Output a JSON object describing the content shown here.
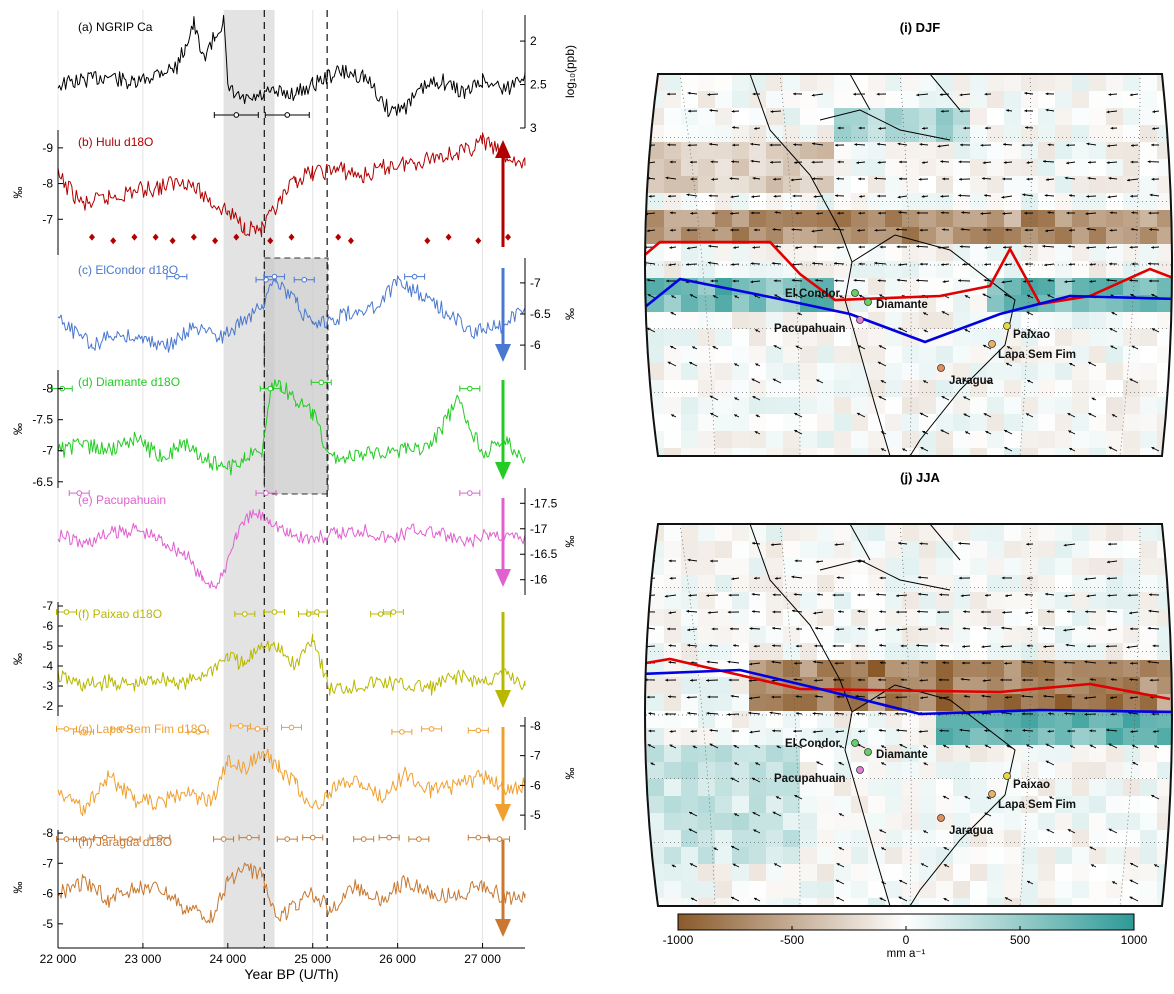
{
  "chart_data": [
    {
      "type": "line",
      "xlabel": "Year BP (U/Th)",
      "xlim": [
        22000,
        27500
      ],
      "x_ticks": [
        "22 000",
        "23 000",
        "24 000",
        "25 000",
        "26 000",
        "27 000"
      ],
      "x_tick_values": [
        22000,
        23000,
        24000,
        25000,
        26000,
        27000
      ],
      "shaded_light_x": [
        23950,
        24550
      ],
      "dashed_lines_x": [
        24430,
        25170
      ],
      "dark_box_x": [
        24430,
        25180
      ],
      "panels": [
        {
          "id": "a",
          "name": "(a) NGRIP Ca",
          "color": "#000000",
          "ylabel": "log₁₀(ppb)",
          "yaxis_side": "right",
          "reversed": true,
          "ylim": [
            1.7,
            3.0
          ],
          "y_ticks": [
            "2",
            "2.5",
            "3"
          ],
          "y_tick_values": [
            2,
            2.5,
            3
          ],
          "x": [
            22000,
            22300,
            22600,
            22900,
            23200,
            23400,
            23500,
            23600,
            23700,
            23850,
            23950,
            24000,
            24200,
            24500,
            24800,
            25000,
            25300,
            25600,
            25900,
            26100,
            26300,
            26500,
            26800,
            27000,
            27300,
            27500
          ],
          "values": [
            2.5,
            2.45,
            2.4,
            2.5,
            2.35,
            2.3,
            2.05,
            1.8,
            2.2,
            1.95,
            1.75,
            2.55,
            2.7,
            2.6,
            2.6,
            2.5,
            2.35,
            2.4,
            2.8,
            2.75,
            2.55,
            2.45,
            2.6,
            2.45,
            2.55,
            2.35
          ],
          "age_markers": [
            {
              "x": 24100,
              "y": 2.85
            },
            {
              "x": 24700,
              "y": 2.85
            }
          ]
        },
        {
          "id": "b",
          "name": "(b) Hulu d18O",
          "color": "#b00000",
          "ylabel": "‰",
          "yaxis_side": "left",
          "reversed": true,
          "ylim": [
            -9.5,
            -6.0
          ],
          "y_ticks": [
            "-9",
            "-8",
            "-7"
          ],
          "y_tick_values": [
            -9,
            -8,
            -7
          ],
          "x": [
            22000,
            22300,
            22600,
            22900,
            23200,
            23500,
            23800,
            24000,
            24200,
            24400,
            24600,
            24800,
            25000,
            25300,
            25600,
            25900,
            26200,
            26500,
            26800,
            27000,
            27300,
            27500
          ],
          "values": [
            -8.2,
            -7.4,
            -7.6,
            -7.8,
            -7.9,
            -8.1,
            -7.5,
            -7.2,
            -6.8,
            -6.7,
            -7.4,
            -8.1,
            -8.3,
            -8.4,
            -8.2,
            -8.5,
            -8.6,
            -8.8,
            -8.9,
            -9.2,
            -8.7,
            -8.5
          ],
          "age_markers": [
            {
              "x": 22400,
              "y": -6.5
            },
            {
              "x": 22650,
              "y": -6.4
            },
            {
              "x": 22900,
              "y": -6.5
            },
            {
              "x": 23150,
              "y": -6.5
            },
            {
              "x": 23350,
              "y": -6.4
            },
            {
              "x": 23600,
              "y": -6.5
            },
            {
              "x": 23850,
              "y": -6.4
            },
            {
              "x": 24100,
              "y": -6.5
            },
            {
              "x": 24500,
              "y": -6.4
            },
            {
              "x": 24750,
              "y": -6.5
            },
            {
              "x": 25300,
              "y": -6.5
            },
            {
              "x": 25450,
              "y": -6.4
            },
            {
              "x": 26350,
              "y": -6.4
            },
            {
              "x": 26600,
              "y": -6.5
            },
            {
              "x": 26950,
              "y": -6.4
            },
            {
              "x": 27300,
              "y": -6.5
            }
          ],
          "arrow": "up"
        },
        {
          "id": "c",
          "name": "(c) ElCondor d18O",
          "color": "#4a78d0",
          "ylabel": "‰",
          "yaxis_side": "right",
          "reversed": true,
          "ylim": [
            -7.4,
            -5.6
          ],
          "y_ticks": [
            "-6",
            "-6.5",
            "-7"
          ],
          "y_tick_values": [
            -6,
            -6.5,
            -7
          ],
          "x": [
            22000,
            22400,
            22700,
            23000,
            23300,
            23600,
            23900,
            24200,
            24400,
            24500,
            24600,
            24800,
            25000,
            25200,
            25400,
            25700,
            26000,
            26300,
            26600,
            26900,
            27200,
            27500
          ],
          "values": [
            -6.4,
            -6.0,
            -6.2,
            -6.1,
            -6.0,
            -6.3,
            -6.1,
            -6.4,
            -6.6,
            -7.1,
            -7.0,
            -6.7,
            -6.3,
            -6.4,
            -6.5,
            -6.6,
            -7.0,
            -6.8,
            -6.5,
            -6.2,
            -6.3,
            -6.6
          ],
          "age_markers": [
            {
              "x": 23400,
              "y": -7.1
            },
            {
              "x": 24450,
              "y": -7.05
            },
            {
              "x": 24550,
              "y": -7.1
            },
            {
              "x": 24900,
              "y": -7.05
            },
            {
              "x": 26200,
              "y": -7.1
            }
          ],
          "arrow": "down"
        },
        {
          "id": "d",
          "name": "(d) Diamante d18O",
          "color": "#22cc22",
          "ylabel": "‰",
          "yaxis_side": "left",
          "reversed": true,
          "ylim": [
            -8.3,
            -6.4
          ],
          "y_ticks": [
            "-6.5",
            "-7",
            "-7.5",
            "-8"
          ],
          "y_tick_values": [
            -6.5,
            -7,
            -7.5,
            -8
          ],
          "x": [
            22000,
            22300,
            22600,
            22900,
            23200,
            23500,
            23800,
            24000,
            24200,
            24400,
            24500,
            24600,
            24800,
            25000,
            25200,
            25500,
            25800,
            26100,
            26400,
            26700,
            27000,
            27300,
            27500
          ],
          "values": [
            -7.0,
            -7.1,
            -7.0,
            -7.2,
            -6.9,
            -7.1,
            -6.8,
            -6.7,
            -6.9,
            -7.0,
            -8.0,
            -8.1,
            -7.8,
            -7.6,
            -6.9,
            -6.9,
            -7.0,
            -7.0,
            -7.1,
            -7.8,
            -7.0,
            -7.1,
            -6.9
          ],
          "age_markers": [
            {
              "x": 22050,
              "y": -8.0
            },
            {
              "x": 24500,
              "y": -8.0
            },
            {
              "x": 25100,
              "y": -8.1
            },
            {
              "x": 26850,
              "y": -8.0
            }
          ],
          "arrow": "down"
        },
        {
          "id": "e",
          "name": "(e) Pacupahuain",
          "color": "#e060d0",
          "ylabel": "‰",
          "yaxis_side": "right",
          "reversed": true,
          "ylim": [
            -17.8,
            -15.7
          ],
          "y_ticks": [
            "-16",
            "-16.5",
            "-17",
            "-17.5"
          ],
          "y_tick_values": [
            -16,
            -16.5,
            -17,
            -17.5
          ],
          "x": [
            22000,
            22300,
            22600,
            22900,
            23200,
            23500,
            23700,
            23900,
            24100,
            24300,
            24500,
            24700,
            25000,
            25300,
            25600,
            25900,
            26200,
            26500,
            26800,
            27100,
            27500
          ],
          "values": [
            -16.9,
            -16.7,
            -16.9,
            -17.0,
            -16.8,
            -16.5,
            -16.0,
            -15.9,
            -16.9,
            -17.3,
            -17.2,
            -16.9,
            -16.8,
            -16.9,
            -17.0,
            -16.8,
            -17.0,
            -16.9,
            -16.7,
            -16.9,
            -16.8
          ],
          "age_markers": [
            {
              "x": 22250,
              "y": -17.7
            },
            {
              "x": 24450,
              "y": -17.7
            },
            {
              "x": 26850,
              "y": -17.7
            }
          ],
          "arrow": "down"
        },
        {
          "id": "f",
          "name": "(f) Paixao d18O",
          "color": "#b8b800",
          "ylabel": "‰",
          "yaxis_side": "left",
          "reversed": true,
          "ylim": [
            -7.2,
            -1.5
          ],
          "y_ticks": [
            "-2",
            "-3",
            "-4",
            "-5",
            "-6",
            "-7"
          ],
          "y_tick_values": [
            -2,
            -3,
            -4,
            -5,
            -6,
            -7
          ],
          "x": [
            22000,
            22300,
            22600,
            22900,
            23200,
            23500,
            23800,
            24000,
            24200,
            24400,
            24600,
            24800,
            25000,
            25200,
            25500,
            25800,
            26100,
            26400,
            26700,
            27000,
            27300,
            27500
          ],
          "values": [
            -3.5,
            -3.0,
            -3.2,
            -3.0,
            -3.4,
            -3.1,
            -3.8,
            -4.5,
            -4.0,
            -5.2,
            -4.8,
            -4.0,
            -5.5,
            -2.8,
            -3.0,
            -3.2,
            -3.0,
            -2.9,
            -3.5,
            -3.2,
            -3.6,
            -3.0
          ],
          "age_markers": [
            {
              "x": 22100,
              "y": -6.7
            },
            {
              "x": 24200,
              "y": -6.6
            },
            {
              "x": 24550,
              "y": -6.7
            },
            {
              "x": 24950,
              "y": -6.6
            },
            {
              "x": 25050,
              "y": -6.7
            },
            {
              "x": 25800,
              "y": -6.6
            },
            {
              "x": 25950,
              "y": -6.7
            }
          ],
          "arrow": "down"
        },
        {
          "id": "g",
          "name": "(g) Lapa Sem Fim d18O",
          "color": "#f0a030",
          "ylabel": "‰",
          "yaxis_side": "right",
          "reversed": true,
          "ylim": [
            -8.3,
            -4.5
          ],
          "y_ticks": [
            "-5",
            "-6",
            "-7",
            "-8"
          ],
          "y_tick_values": [
            -5,
            -6,
            -7,
            -8
          ],
          "x": [
            22000,
            22300,
            22600,
            22900,
            23200,
            23500,
            23800,
            24000,
            24200,
            24400,
            24600,
            24800,
            25000,
            25200,
            25500,
            25800,
            26100,
            26400,
            26700,
            27000,
            27300,
            27500
          ],
          "values": [
            -5.8,
            -5.2,
            -6.3,
            -5.5,
            -5.4,
            -5.8,
            -5.4,
            -6.8,
            -6.5,
            -7.2,
            -6.6,
            -6.0,
            -5.2,
            -5.8,
            -6.2,
            -5.6,
            -6.4,
            -5.8,
            -6.0,
            -6.3,
            -5.9,
            -6.0
          ],
          "age_markers": [
            {
              "x": 22100,
              "y": -7.9
            },
            {
              "x": 22300,
              "y": -7.8
            },
            {
              "x": 22750,
              "y": -7.9
            },
            {
              "x": 23650,
              "y": -7.8
            },
            {
              "x": 24150,
              "y": -8.0
            },
            {
              "x": 24350,
              "y": -7.9
            },
            {
              "x": 24750,
              "y": -7.95
            },
            {
              "x": 26050,
              "y": -7.8
            },
            {
              "x": 26400,
              "y": -7.9
            },
            {
              "x": 26950,
              "y": -7.85
            }
          ],
          "arrow": "down"
        },
        {
          "id": "h",
          "name": "(h) Jaragua d18O",
          "color": "#c87830",
          "ylabel": "‰",
          "yaxis_side": "left",
          "reversed": true,
          "ylim": [
            -8.1,
            -4.3
          ],
          "y_ticks": [
            "-5",
            "-6",
            "-7",
            "-8"
          ],
          "y_tick_values": [
            -5,
            -6,
            -7,
            -8
          ],
          "x": [
            22000,
            22300,
            22600,
            22900,
            23200,
            23500,
            23800,
            24000,
            24200,
            24400,
            24600,
            24800,
            25000,
            25200,
            25500,
            25800,
            26100,
            26400,
            26700,
            27000,
            27300,
            27500
          ],
          "values": [
            -6.0,
            -6.4,
            -5.8,
            -6.2,
            -6.1,
            -5.5,
            -5.2,
            -6.4,
            -6.8,
            -6.6,
            -5.2,
            -5.6,
            -6.0,
            -5.5,
            -6.2,
            -5.8,
            -6.4,
            -6.0,
            -5.9,
            -6.3,
            -5.8,
            -6.0
          ],
          "age_markers": [
            {
              "x": 22100,
              "y": -7.8
            },
            {
              "x": 22300,
              "y": -7.8
            },
            {
              "x": 22550,
              "y": -7.85
            },
            {
              "x": 22850,
              "y": -7.8
            },
            {
              "x": 23200,
              "y": -7.85
            },
            {
              "x": 23950,
              "y": -7.8
            },
            {
              "x": 24250,
              "y": -7.85
            },
            {
              "x": 24700,
              "y": -7.8
            },
            {
              "x": 25000,
              "y": -7.85
            },
            {
              "x": 25600,
              "y": -7.8
            },
            {
              "x": 25900,
              "y": -7.85
            },
            {
              "x": 26250,
              "y": -7.8
            },
            {
              "x": 26950,
              "y": -7.85
            },
            {
              "x": 27200,
              "y": -7.8
            }
          ],
          "arrow": "down"
        }
      ]
    },
    {
      "type": "heatmap",
      "maps": [
        {
          "id": "i",
          "title": "(i) DJF"
        },
        {
          "id": "j",
          "title": "(j) JJA"
        }
      ],
      "site_labels": [
        {
          "name": "El Condor",
          "color": "#66d066"
        },
        {
          "name": "Diamante",
          "color": "#66d066"
        },
        {
          "name": "Pacupahuain",
          "color": "#e080d8"
        },
        {
          "name": "Paixao",
          "color": "#e6d840"
        },
        {
          "name": "Lapa Sem Fim",
          "color": "#f0b060"
        },
        {
          "name": "Jaragua",
          "color": "#e0905a"
        }
      ],
      "lines": [
        {
          "color": "#e00000"
        },
        {
          "color": "#0000e0"
        }
      ],
      "colorbar": {
        "ticks": [
          "-1000",
          "-500",
          "0",
          "500",
          "1000"
        ],
        "tick_values": [
          -1000,
          -500,
          0,
          500,
          1000
        ],
        "range": [
          -1000,
          1000
        ],
        "unit": "mm a⁻¹",
        "colors": [
          "#8a5a2a",
          "#ffffff",
          "#2e9a96"
        ]
      }
    }
  ]
}
